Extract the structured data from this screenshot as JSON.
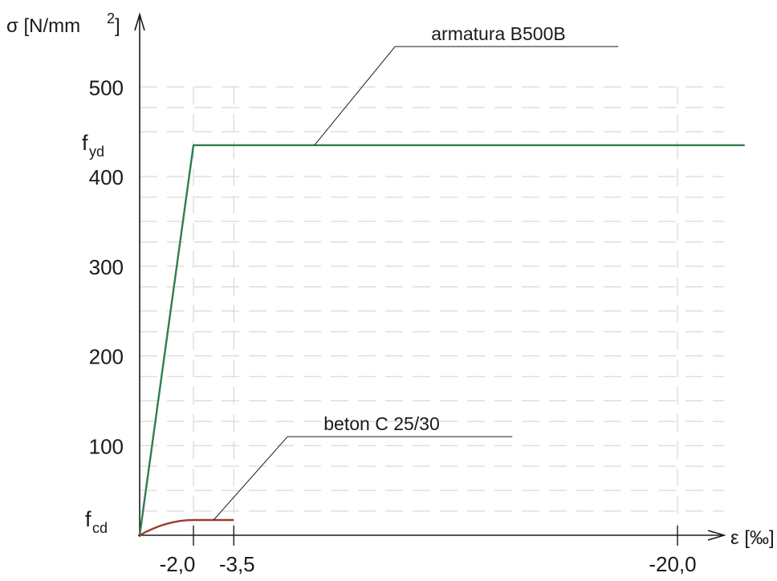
{
  "chart_data": {
    "type": "line",
    "title": "",
    "xlabel": "ε [‰]",
    "ylabel_prefix": "σ [N/mm",
    "ylabel_sup": "2",
    "ylabel_suffix": "]",
    "x_direction": "reversed (compressive strain grows to the right)",
    "xlim": [
      0,
      -22.5
    ],
    "ylim": [
      0,
      570
    ],
    "grid": true,
    "y_ticks": [
      {
        "value": 100,
        "label": "100"
      },
      {
        "value": 200,
        "label": "200"
      },
      {
        "value": 300,
        "label": "300"
      },
      {
        "value": 400,
        "label": "400"
      },
      {
        "value": 500,
        "label": "500"
      }
    ],
    "x_ticks": [
      {
        "value": -2.0,
        "label": "-2,0"
      },
      {
        "value": -3.5,
        "label": "-3,5"
      },
      {
        "value": -20.0,
        "label": "-20,0"
      }
    ],
    "special_y_labels": [
      {
        "value": 435,
        "main": "f",
        "sub": "yd"
      },
      {
        "value": 17,
        "main": "f",
        "sub": "cd"
      }
    ],
    "series": [
      {
        "name": "armatura B500B",
        "color": "#2e7d4f",
        "x": [
          0,
          -2.0,
          -22.5
        ],
        "y": [
          0,
          435,
          435
        ],
        "annotation": {
          "anchor_x": -6.5,
          "anchor_y": 435,
          "text_x": -9.5,
          "text_y": 545
        }
      },
      {
        "name": "beton C 25/30",
        "color": "#9e3b2e",
        "x": [
          0,
          -0.25,
          -0.5,
          -0.75,
          -1.0,
          -1.25,
          -1.5,
          -1.75,
          -2.0,
          -3.5
        ],
        "y": [
          0,
          3.99,
          7.44,
          10.36,
          12.75,
          14.61,
          15.94,
          16.73,
          17.0,
          17.0
        ],
        "annotation": {
          "anchor_x": -2.75,
          "anchor_y": 17,
          "text_x": -5.5,
          "text_y": 110
        }
      }
    ],
    "gridline_values_y": [
      27,
      50,
      77,
      100,
      127,
      150,
      177,
      200,
      227,
      250,
      277,
      300,
      327,
      350,
      377,
      400,
      450,
      477,
      500
    ],
    "gridline_values_x": [
      -2.0,
      -3.5,
      -20.0
    ],
    "colors": {
      "axis": "#1a1a1a",
      "grid": "#cfcfcf",
      "steel": "#2e7d4f",
      "concrete": "#9e3b2e"
    }
  }
}
